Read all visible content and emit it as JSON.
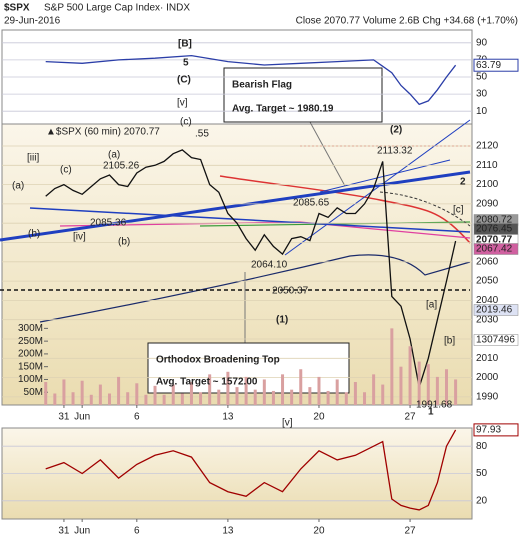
{
  "chart_data": [
    {
      "type": "line",
      "title": "$SPX",
      "subtitle": "S&P 500 Large Cap Index· INDX",
      "date": "29-Jun-2016",
      "info": "Close 2070.77 Volume 2.6B Chg +34.68 (+1.70%)",
      "legend_label": "▲$SPX (60 min) 2070.77",
      "xlim": [
        -2.4,
        23.4
      ],
      "xticks": [
        {
          "value": 1,
          "label": "31"
        },
        {
          "value": 2,
          "label": "Jun"
        },
        {
          "value": 5,
          "label": "6"
        },
        {
          "value": 10,
          "label": "13"
        },
        {
          "value": 15,
          "label": "20"
        },
        {
          "value": 20,
          "label": "27"
        }
      ],
      "ylim": [
        1985.8,
        2131.4
      ],
      "yticks": [
        2120,
        2110,
        2100,
        2090,
        2080,
        2070,
        2060,
        2050,
        2040,
        2030,
        2020,
        2010,
        2000,
        1990
      ],
      "y2lim": [
        0,
        1100000000
      ],
      "y2ticks": [
        {
          "value": 300000000,
          "label": "300M"
        },
        {
          "value": 250000000,
          "label": "250M"
        },
        {
          "value": 200000000,
          "label": "200M"
        },
        {
          "value": 150000000,
          "label": "150M"
        },
        {
          "value": 100000000,
          "label": "100M"
        },
        {
          "value": 50000000,
          "label": "50M"
        }
      ],
      "grid": true,
      "x": [
        0,
        0.5,
        1,
        1.5,
        2,
        2.5,
        3,
        3.5,
        4,
        4.5,
        5,
        5.5,
        6,
        6.5,
        7,
        7.5,
        8,
        8.5,
        9,
        9.5,
        10,
        10.5,
        11,
        11.5,
        12,
        12.5,
        13,
        13.5,
        14,
        14.5,
        15,
        15.5,
        16,
        16.5,
        17,
        17.5,
        18,
        18.5,
        19,
        19.5,
        20,
        20.5,
        21,
        21.5,
        22,
        22.5
      ],
      "series": [
        {
          "color": "#111111",
          "values": [
            2094,
            2098,
            2100,
            2097,
            2095,
            2099,
            2103,
            2105,
            2100,
            2099,
            2106,
            2109,
            2110,
            2112,
            2116,
            2118,
            2114,
            2113,
            2100,
            2096,
            2085,
            2080,
            2072,
            2066,
            2074,
            2068,
            2064,
            2072,
            2073,
            2071,
            2085,
            2083,
            2088,
            2085,
            2085,
            2090,
            2098,
            2112,
            2042,
            2037,
            2020,
            1995,
            2010,
            2030,
            2050,
            2070.77
          ]
        },
        {
          "color": "#d9a0a0",
          "axis": "y2",
          "type": "bar",
          "values": [
            90000000,
            45000000,
            100000000,
            50000000,
            95000000,
            40000000,
            80000000,
            45000000,
            110000000,
            50000000,
            85000000,
            40000000,
            75000000,
            40000000,
            80000000,
            45000000,
            90000000,
            50000000,
            120000000,
            60000000,
            130000000,
            70000000,
            110000000,
            60000000,
            100000000,
            55000000,
            120000000,
            60000000,
            140000000,
            70000000,
            110000000,
            55000000,
            100000000,
            50000000,
            90000000,
            50000000,
            120000000,
            80000000,
            300000000,
            150000000,
            230000000,
            170000000,
            160000000,
            110000000,
            140000000,
            100000000
          ]
        }
      ],
      "annotations": [
        {
          "text": "[B]",
          "color": "#1a1a9a"
        },
        {
          "text": "5",
          "color": "#8a2be2"
        },
        {
          "text": "(C)",
          "color": "#111111"
        },
        {
          "text": "[v]",
          "color": "#cc0000"
        },
        {
          "text": "(c)",
          "color": "#2a8a2a"
        },
        {
          "text": "(a)",
          "color": "#2a8a2a"
        },
        {
          "text": "(c)",
          "color": "#2a8a2a"
        },
        {
          "text": "(a)",
          "color": "#2a8a2a"
        },
        {
          "text": "[iii]",
          "color": "#cc0000"
        },
        {
          "text": "(b)",
          "color": "#2a8a2a"
        },
        {
          "text": "[iv]",
          "color": "#cc0000"
        },
        {
          "text": "(b)",
          "color": "#2a8a2a"
        },
        {
          "text": "(2)",
          "color": "#111111"
        },
        {
          "text": "2",
          "color": "#8a2be2"
        },
        {
          "text": "[c]",
          "color": "#cc0000"
        },
        {
          "text": "[a]",
          "color": "#cc0000"
        },
        {
          "text": "[b]",
          "color": "#cc0000"
        },
        {
          "text": "(1)",
          "color": "#111111"
        },
        {
          "text": "1",
          "color": "#8a2be2"
        },
        {
          "text": "[v]",
          "color": "#cc0000"
        },
        {
          "text": "Bearish Flag",
          "color": "#111111"
        },
        {
          "text": "Avg. Target ~ 1980.19",
          "color": "#111111"
        },
        {
          "text": "Orthodox Broadening Top",
          "color": "#111111"
        },
        {
          "text": "Avg. Target ~ 1572.00",
          "color": "#111111"
        },
        {
          "text": "2105.26",
          "color": "#222222"
        },
        {
          "text": "2085.36",
          "color": "#222222"
        },
        {
          "text": "2085.65",
          "color": "#222222"
        },
        {
          "text": "2113.32",
          "color": "#222222"
        },
        {
          "text": "2064.10",
          "color": "#222222"
        },
        {
          "text": "2050.37",
          "color": "#222222"
        },
        {
          "text": "1991.68",
          "color": "#222222"
        },
        {
          "text": ".55",
          "color": "#222222"
        }
      ],
      "price_labels": [
        {
          "text": "2080.72",
          "color": "#ffffff",
          "background": "#999999"
        },
        {
          "text": "2076.45",
          "color": "#ffffff",
          "background": "#555555"
        },
        {
          "text": "2070.77",
          "color": "#000000",
          "background": "#ffffff"
        },
        {
          "text": "2067.42",
          "color": "#ffffff",
          "background": "#d060a0"
        },
        {
          "text": "2019.46",
          "color": "#1a2a6a",
          "background": "#dde2f4"
        },
        {
          "text": "1307496",
          "color": "#222222",
          "background": "#ffffff"
        }
      ]
    },
    {
      "type": "line",
      "xlim": [
        -2.4,
        23.4
      ],
      "ylim": [
        -5,
        105
      ],
      "yticks": [
        90,
        70,
        50,
        30,
        10
      ],
      "grid": true,
      "x": [
        0,
        2,
        4,
        6,
        8,
        10,
        12,
        14,
        16,
        18,
        19,
        19.5,
        20,
        20.5,
        21,
        21.5,
        22,
        22.5
      ],
      "series": [
        {
          "color": "#2b3ea8",
          "values": [
            68,
            66,
            70,
            72,
            75,
            68,
            64,
            66,
            68,
            70,
            55,
            40,
            30,
            18,
            22,
            35,
            50,
            63.79
          ]
        }
      ]
    },
    {
      "type": "line",
      "xlim": [
        -2.4,
        23.4
      ],
      "xticks": [
        {
          "value": 1,
          "label": "31"
        },
        {
          "value": 2,
          "label": "Jun"
        },
        {
          "value": 5,
          "label": "6"
        },
        {
          "value": 10,
          "label": "13"
        },
        {
          "value": 15,
          "label": "20"
        },
        {
          "value": 20,
          "label": "27"
        }
      ],
      "ylim": [
        0,
        100
      ],
      "yticks": [
        80,
        50,
        20
      ],
      "grid": true,
      "x": [
        0,
        1,
        2,
        3,
        4,
        5,
        6,
        7,
        8,
        9,
        10,
        11,
        12,
        13,
        14,
        15,
        16,
        17,
        18,
        18.5,
        19,
        19.5,
        20,
        20.5,
        21,
        21.5,
        22,
        22.5
      ],
      "series": [
        {
          "color": "#a00000",
          "values": [
            55,
            62,
            50,
            65,
            45,
            60,
            70,
            75,
            68,
            40,
            30,
            25,
            40,
            30,
            55,
            75,
            65,
            70,
            80,
            85,
            22,
            15,
            12,
            10,
            15,
            40,
            80,
            97.93
          ]
        }
      ]
    }
  ]
}
